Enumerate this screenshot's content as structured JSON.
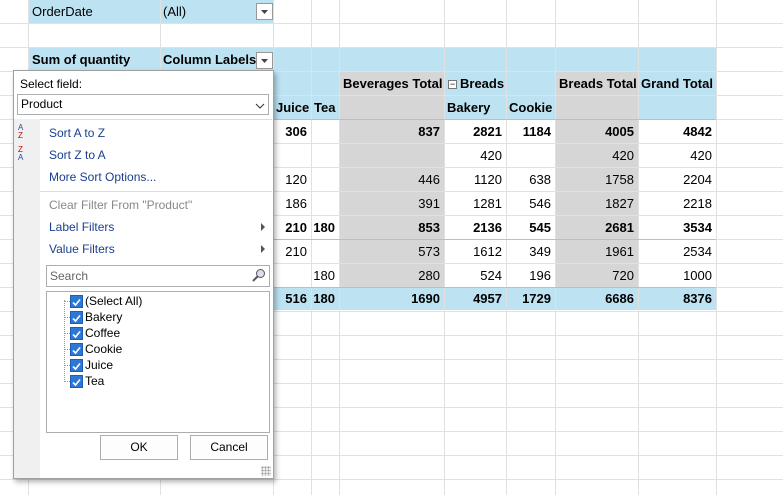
{
  "filter": {
    "label": "OrderDate",
    "value": "(All)"
  },
  "pivot": {
    "value_label": "Sum of quantity",
    "column_labels": "Column Labels",
    "group_headers": [
      "Beverages Total",
      "Breads",
      "Breads Total",
      "Grand Total"
    ],
    "sub_headers": [
      "Juice",
      "Tea",
      "Bakery",
      "Cookie"
    ],
    "rows": [
      {
        "bold": true,
        "values": [
          306,
          null,
          837,
          2821,
          1184,
          4005,
          4842
        ]
      },
      {
        "bold": false,
        "values": [
          null,
          null,
          null,
          420,
          null,
          420,
          420
        ]
      },
      {
        "bold": false,
        "values": [
          120,
          null,
          446,
          1120,
          638,
          1758,
          2204
        ]
      },
      {
        "bold": false,
        "values": [
          186,
          null,
          391,
          1281,
          546,
          1827,
          2218
        ]
      },
      {
        "bold": true,
        "values": [
          210,
          180,
          853,
          2136,
          545,
          2681,
          3534
        ]
      },
      {
        "bold": false,
        "values": [
          210,
          null,
          573,
          1612,
          349,
          1961,
          2534
        ]
      },
      {
        "bold": false,
        "values": [
          null,
          180,
          280,
          524,
          196,
          720,
          1000
        ]
      }
    ],
    "grand_total": [
      516,
      180,
      1690,
      4957,
      1729,
      6686,
      8376
    ]
  },
  "popup": {
    "select_field_label": "Select field:",
    "field": "Product",
    "sort_items": [
      "Sort A to Z",
      "Sort Z to A",
      "More Sort Options..."
    ],
    "clear_filter": "Clear Filter From \"Product\"",
    "filter_items": [
      "Label Filters",
      "Value Filters"
    ],
    "search_placeholder": "Search",
    "items": [
      "(Select All)",
      "Bakery",
      "Coffee",
      "Cookie",
      "Juice",
      "Tea"
    ],
    "buttons": [
      "OK",
      "Cancel"
    ]
  }
}
